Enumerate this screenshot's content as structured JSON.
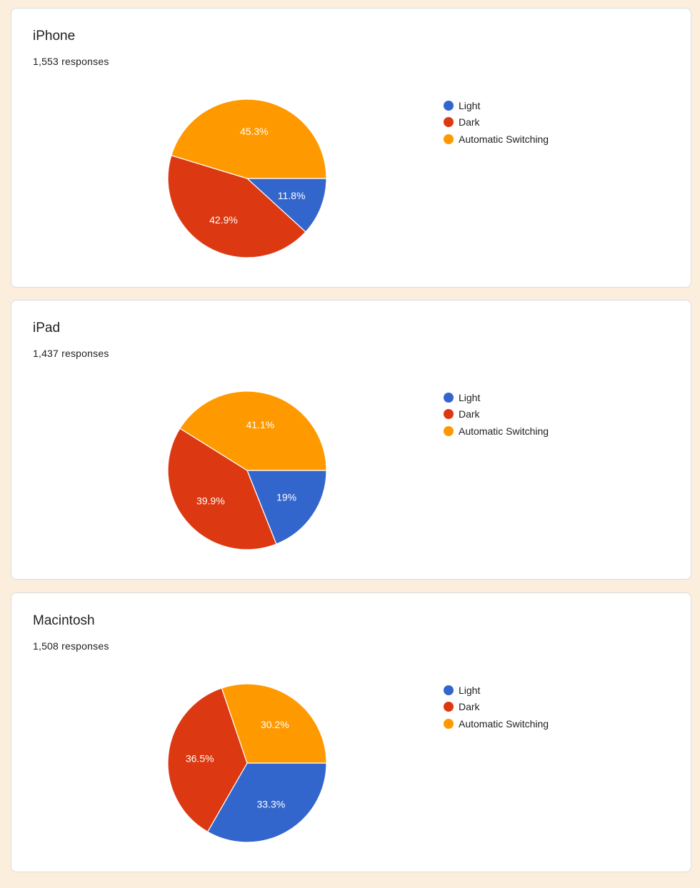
{
  "colors": {
    "light": "#3366cc",
    "dark": "#dc3912",
    "auto": "#ff9900"
  },
  "chart_data": [
    {
      "type": "pie",
      "title": "iPhone",
      "subtitle": "1,553 responses",
      "categories": [
        "Light",
        "Dark",
        "Automatic Switching"
      ],
      "values": [
        11.8,
        42.9,
        45.3
      ],
      "labels": [
        "11.8%",
        "42.9%",
        "45.3%"
      ],
      "legend_position": "right"
    },
    {
      "type": "pie",
      "title": "iPad",
      "subtitle": "1,437 responses",
      "categories": [
        "Light",
        "Dark",
        "Automatic Switching"
      ],
      "values": [
        19,
        39.9,
        41.1
      ],
      "labels": [
        "19%",
        "39.9%",
        "41.1%"
      ],
      "legend_position": "right"
    },
    {
      "type": "pie",
      "title": "Macintosh",
      "subtitle": "1,508 responses",
      "categories": [
        "Light",
        "Dark",
        "Automatic Switching"
      ],
      "values": [
        33.3,
        36.5,
        30.2
      ],
      "labels": [
        "33.3%",
        "36.5%",
        "30.2%"
      ],
      "legend_position": "right"
    }
  ]
}
